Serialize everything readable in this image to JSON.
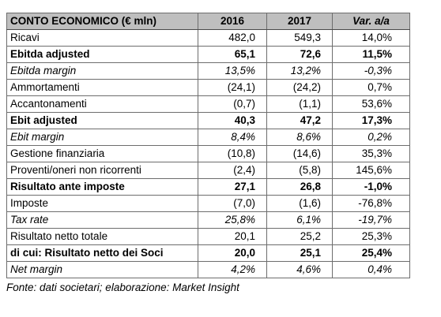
{
  "table": {
    "header": {
      "label": "CONTO ECONOMICO (€ mln)",
      "col_2016": "2016",
      "col_2017": "2017",
      "col_var": "Var. a/a"
    },
    "rows": [
      {
        "label": "Ricavi",
        "v2016": "482,0",
        "v2017": "549,3",
        "var": "14,0%",
        "style": "normal"
      },
      {
        "label": "Ebitda adjusted",
        "v2016": "65,1",
        "v2017": "72,6",
        "var": "11,5%",
        "style": "bold"
      },
      {
        "label": "Ebitda margin",
        "v2016": "13,5%",
        "v2017": "13,2%",
        "var": "-0,3%",
        "style": "italic"
      },
      {
        "label": "Ammortamenti",
        "v2016": "(24,1)",
        "v2017": "(24,2)",
        "var": "0,7%",
        "style": "normal"
      },
      {
        "label": "Accantonamenti",
        "v2016": "(0,7)",
        "v2017": "(1,1)",
        "var": "53,6%",
        "style": "normal"
      },
      {
        "label": "Ebit adjusted",
        "v2016": "40,3",
        "v2017": "47,2",
        "var": "17,3%",
        "style": "bold"
      },
      {
        "label": "Ebit margin",
        "v2016": "8,4%",
        "v2017": "8,6%",
        "var": "0,2%",
        "style": "italic"
      },
      {
        "label": "Gestione finanziaria",
        "v2016": "(10,8)",
        "v2017": "(14,6)",
        "var": "35,3%",
        "style": "normal"
      },
      {
        "label": "Proventi/oneri non ricorrenti",
        "v2016": "(2,4)",
        "v2017": "(5,8)",
        "var": "145,6%",
        "style": "normal"
      },
      {
        "label": "Risultato ante imposte",
        "v2016": "27,1",
        "v2017": "26,8",
        "var": "-1,0%",
        "style": "bold"
      },
      {
        "label": "Imposte",
        "v2016": "(7,0)",
        "v2017": "(1,6)",
        "var": "-76,8%",
        "style": "normal"
      },
      {
        "label": "Tax rate",
        "v2016": "25,8%",
        "v2017": "6,1%",
        "var": "-19,7%",
        "style": "italic"
      },
      {
        "label": "Risultato netto totale",
        "v2016": "20,1",
        "v2017": "25,2",
        "var": "25,3%",
        "style": "normal"
      },
      {
        "label": "di cui: Risultato netto dei Soci",
        "v2016": "20,0",
        "v2017": "25,1",
        "var": "25,4%",
        "style": "bold"
      },
      {
        "label": "Net margin",
        "v2016": "4,2%",
        "v2017": "4,6%",
        "var": "0,4%",
        "style": "italic"
      }
    ]
  },
  "source": "Fonte: dati societari; elaborazione: Market Insight"
}
